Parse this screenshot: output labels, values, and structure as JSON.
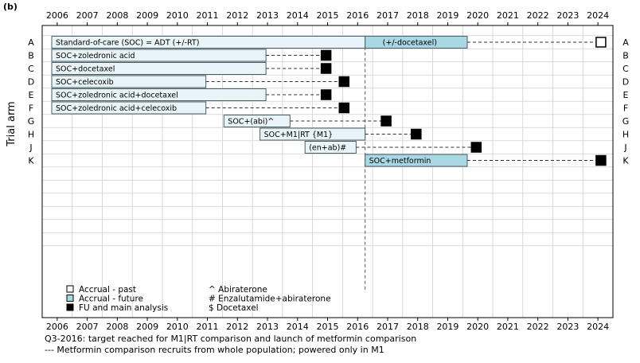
{
  "panel_label": "(b)",
  "colors": {
    "past": "#e8f4f8",
    "future": "#a9d7e4",
    "bar_stroke": "#4a5f66",
    "grid": "#cfcfcf",
    "fu_marker": "#000000"
  },
  "chart_data": {
    "type": "gantt",
    "ylabel": "Trial arm",
    "x_start": 2005.5,
    "x_end": 2024.5,
    "years": [
      "2006",
      "2007",
      "2008",
      "2009",
      "2010",
      "2011",
      "2012",
      "2013",
      "2014",
      "2015",
      "2016",
      "2017",
      "2018",
      "2019",
      "2020",
      "2021",
      "2022",
      "2023",
      "2024"
    ],
    "reference_line_year": 2016.25,
    "empty_rows_below": 6,
    "arms": [
      {
        "label": "A",
        "bars": [
          {
            "text": "Standard-of-care (SOC) = ADT (+/-RT)",
            "start": 2005.5,
            "end": 2016.25,
            "phase": "past"
          },
          {
            "text": "(+/-docetaxel)",
            "start": 2016.25,
            "end": 2019.65,
            "phase": "future"
          }
        ],
        "fu_year": 2024.1,
        "fu_style": "open"
      },
      {
        "label": "B",
        "bars": [
          {
            "text": "SOC+zoledronic acid",
            "start": 2005.5,
            "end": 2012.95,
            "phase": "past"
          }
        ],
        "fu_year": 2014.95,
        "fu_style": "filled"
      },
      {
        "label": "C",
        "bars": [
          {
            "text": "SOC+docetaxel",
            "start": 2005.5,
            "end": 2012.95,
            "phase": "past"
          }
        ],
        "fu_year": 2014.95,
        "fu_style": "filled"
      },
      {
        "label": "D",
        "bars": [
          {
            "text": "SOC+celecoxib",
            "start": 2005.5,
            "end": 2010.95,
            "phase": "past"
          }
        ],
        "fu_year": 2015.55,
        "fu_style": "filled"
      },
      {
        "label": "E",
        "bars": [
          {
            "text": "SOC+zoledronic acid+docetaxel",
            "start": 2005.5,
            "end": 2012.95,
            "phase": "past"
          }
        ],
        "fu_year": 2014.95,
        "fu_style": "filled"
      },
      {
        "label": "F",
        "bars": [
          {
            "text": "SOC+zoledronic acid+celecoxib",
            "start": 2005.5,
            "end": 2010.95,
            "phase": "past"
          }
        ],
        "fu_year": 2015.55,
        "fu_style": "filled"
      },
      {
        "label": "G",
        "bars": [
          {
            "text": "SOC+(abi)^",
            "start": 2011.55,
            "end": 2013.75,
            "phase": "past"
          }
        ],
        "fu_year": 2016.95,
        "fu_style": "filled"
      },
      {
        "label": "H",
        "bars": [
          {
            "text": "SOC+M1|RT {M1}",
            "start": 2012.75,
            "end": 2016.25,
            "phase": "past"
          }
        ],
        "fu_year": 2017.95,
        "fu_style": "filled"
      },
      {
        "label": "J",
        "bars": [
          {
            "text": "(en+ab)#",
            "start": 2014.25,
            "end": 2015.95,
            "phase": "past"
          }
        ],
        "fu_year": 2019.95,
        "fu_style": "filled"
      },
      {
        "label": "K",
        "bars": [
          {
            "text": "SOC+metformin",
            "start": 2016.25,
            "end": 2019.65,
            "phase": "future"
          }
        ],
        "fu_year": 2024.1,
        "fu_style": "filled"
      }
    ],
    "legend": [
      {
        "style": "past",
        "text": "Accrual - past"
      },
      {
        "style": "future",
        "text": "Accrual - future"
      },
      {
        "style": "filled",
        "text": "FU and main analysis"
      }
    ],
    "abbreviations": [
      "^ Abiraterone",
      "# Enzalutamide+abiraterone",
      "$ Docetaxel"
    ]
  },
  "footnotes": [
    "Q3-2016: target reached for M1|RT comparison and launch of metformin comparison",
    "--- Metformin comparison recruits from whole population; powered only in M1"
  ]
}
